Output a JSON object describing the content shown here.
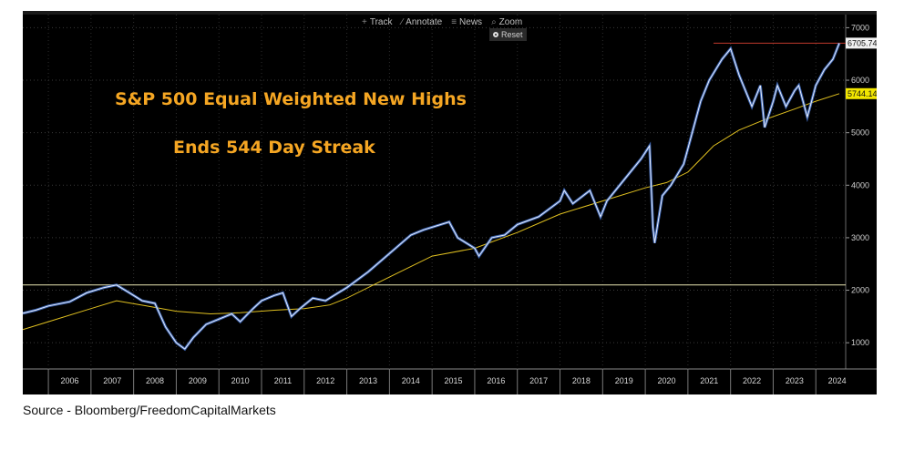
{
  "toolbar": {
    "items": [
      {
        "icon": "track-icon",
        "glyph": "+",
        "label": "Track"
      },
      {
        "icon": "annotate-icon",
        "glyph": "∕",
        "label": "Annotate"
      },
      {
        "icon": "news-icon",
        "glyph": "≡",
        "label": "News"
      },
      {
        "icon": "zoom-icon",
        "glyph": "⌕",
        "label": "Zoom"
      }
    ],
    "reset_label": "Reset"
  },
  "annotations": {
    "title": "S&P 500 Equal Weighted New Highs",
    "subtitle": "Ends 544 Day Streak"
  },
  "source": "Source - Bloomberg/FreedomCapitalMarkets",
  "colors": {
    "background": "#000000",
    "price_line": "#e8eefc",
    "price_accent": "#4a7bd8",
    "moving_average": "#e0c020",
    "high_marker": "#c0392b",
    "reference_line": "#e8e4b0",
    "annotation_text": "#f5a623"
  },
  "chart_data": {
    "type": "line",
    "x_ticks": [
      "2006",
      "2007",
      "2008",
      "2009",
      "2010",
      "2011",
      "2012",
      "2013",
      "2014",
      "2015",
      "2016",
      "2017",
      "2018",
      "2019",
      "2020",
      "2021",
      "2022",
      "2023",
      "2024"
    ],
    "y_ticks": [
      1000,
      2000,
      3000,
      4000,
      5000,
      6000,
      7000
    ],
    "ylim": [
      500,
      7250
    ],
    "xlim": [
      2005.4,
      2024.7
    ],
    "grid": true,
    "axis_side": "right",
    "price_labels": {
      "last": "6705.74",
      "moving_average": "5744.14"
    },
    "series": [
      {
        "style": "price",
        "points": [
          [
            2005.4,
            1560
          ],
          [
            2005.7,
            1620
          ],
          [
            2006.0,
            1700
          ],
          [
            2006.5,
            1780
          ],
          [
            2006.9,
            1950
          ],
          [
            2007.3,
            2050
          ],
          [
            2007.6,
            2100
          ],
          [
            2007.9,
            1950
          ],
          [
            2008.2,
            1800
          ],
          [
            2008.5,
            1750
          ],
          [
            2008.75,
            1300
          ],
          [
            2009.0,
            1000
          ],
          [
            2009.2,
            880
          ],
          [
            2009.4,
            1100
          ],
          [
            2009.7,
            1350
          ],
          [
            2010.0,
            1450
          ],
          [
            2010.3,
            1550
          ],
          [
            2010.5,
            1400
          ],
          [
            2010.8,
            1650
          ],
          [
            2011.0,
            1800
          ],
          [
            2011.3,
            1900
          ],
          [
            2011.5,
            1950
          ],
          [
            2011.7,
            1500
          ],
          [
            2011.9,
            1650
          ],
          [
            2012.2,
            1850
          ],
          [
            2012.5,
            1800
          ],
          [
            2012.8,
            1950
          ],
          [
            2013.0,
            2050
          ],
          [
            2013.5,
            2350
          ],
          [
            2014.0,
            2700
          ],
          [
            2014.5,
            3050
          ],
          [
            2014.8,
            3150
          ],
          [
            2015.2,
            3250
          ],
          [
            2015.4,
            3300
          ],
          [
            2015.6,
            3000
          ],
          [
            2016.0,
            2800
          ],
          [
            2016.1,
            2650
          ],
          [
            2016.4,
            3000
          ],
          [
            2016.7,
            3050
          ],
          [
            2017.0,
            3250
          ],
          [
            2017.5,
            3400
          ],
          [
            2018.0,
            3700
          ],
          [
            2018.1,
            3900
          ],
          [
            2018.3,
            3650
          ],
          [
            2018.7,
            3900
          ],
          [
            2018.95,
            3400
          ],
          [
            2019.1,
            3700
          ],
          [
            2019.5,
            4100
          ],
          [
            2019.9,
            4500
          ],
          [
            2020.1,
            4750
          ],
          [
            2020.18,
            3200
          ],
          [
            2020.22,
            2900
          ],
          [
            2020.4,
            3800
          ],
          [
            2020.6,
            4000
          ],
          [
            2020.9,
            4400
          ],
          [
            2021.0,
            4700
          ],
          [
            2021.3,
            5600
          ],
          [
            2021.5,
            6000
          ],
          [
            2021.8,
            6400
          ],
          [
            2022.0,
            6600
          ],
          [
            2022.2,
            6100
          ],
          [
            2022.4,
            5700
          ],
          [
            2022.5,
            5500
          ],
          [
            2022.7,
            5900
          ],
          [
            2022.8,
            5100
          ],
          [
            2023.0,
            5600
          ],
          [
            2023.1,
            5900
          ],
          [
            2023.3,
            5500
          ],
          [
            2023.5,
            5800
          ],
          [
            2023.6,
            5900
          ],
          [
            2023.8,
            5300
          ],
          [
            2023.9,
            5600
          ],
          [
            2024.0,
            5900
          ],
          [
            2024.2,
            6200
          ],
          [
            2024.4,
            6400
          ],
          [
            2024.55,
            6705.74
          ]
        ]
      },
      {
        "style": "moving_average",
        "points": [
          [
            2005.4,
            1250
          ],
          [
            2006.0,
            1400
          ],
          [
            2007.0,
            1650
          ],
          [
            2007.6,
            1800
          ],
          [
            2008.3,
            1700
          ],
          [
            2009.0,
            1600
          ],
          [
            2009.8,
            1550
          ],
          [
            2010.5,
            1570
          ],
          [
            2011.3,
            1620
          ],
          [
            2012.0,
            1650
          ],
          [
            2012.6,
            1720
          ],
          [
            2013.0,
            1850
          ],
          [
            2014.0,
            2250
          ],
          [
            2015.0,
            2650
          ],
          [
            2016.0,
            2800
          ],
          [
            2017.0,
            3100
          ],
          [
            2018.0,
            3450
          ],
          [
            2019.0,
            3700
          ],
          [
            2020.0,
            3950
          ],
          [
            2020.5,
            4050
          ],
          [
            2021.0,
            4250
          ],
          [
            2021.6,
            4750
          ],
          [
            2022.2,
            5050
          ],
          [
            2022.8,
            5250
          ],
          [
            2023.5,
            5450
          ],
          [
            2024.0,
            5600
          ],
          [
            2024.55,
            5744.14
          ]
        ]
      },
      {
        "style": "reference",
        "y": 2100
      },
      {
        "style": "high_marker",
        "y": 6705.74,
        "x_start": 2021.6
      }
    ]
  }
}
